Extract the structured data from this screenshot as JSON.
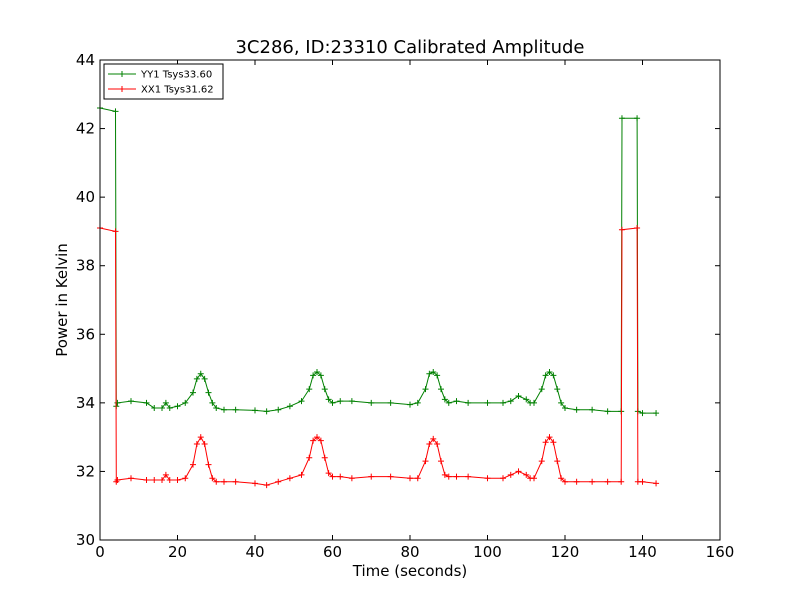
{
  "chart_data": {
    "type": "line",
    "title": "3C286, ID:23310 Calibrated Amplitude",
    "xlabel": "Time (seconds)",
    "ylabel": "Power in Kelvin",
    "xlim": [
      0,
      160
    ],
    "ylim": [
      30,
      44
    ],
    "xticks": [
      "0",
      "20",
      "40",
      "60",
      "80",
      "100",
      "120",
      "140",
      "160"
    ],
    "yticks": [
      "30",
      "32",
      "34",
      "36",
      "38",
      "40",
      "42",
      "44"
    ],
    "grid": false,
    "legend_position": "top-left",
    "series": [
      {
        "name": "YY1 Tsys33.60",
        "color": "#008000",
        "x": [
          0,
          4,
          4.2,
          4.5,
          8,
          12,
          14,
          16,
          17,
          18,
          20,
          22,
          24,
          25,
          26,
          27,
          28,
          29,
          30,
          32,
          35,
          40,
          43,
          46,
          49,
          52,
          54,
          55,
          56,
          57,
          58,
          59,
          60,
          62,
          65,
          70,
          75,
          80,
          82,
          84,
          85,
          86,
          87,
          88,
          89,
          90,
          92,
          95,
          100,
          104,
          106,
          108,
          110,
          111,
          112,
          114,
          115,
          116,
          117,
          118,
          119,
          120,
          123,
          127,
          131,
          134.5,
          134.7,
          138.6,
          138.8,
          140,
          143.5
        ],
        "y": [
          42.6,
          42.5,
          33.9,
          34.0,
          34.05,
          34.0,
          33.85,
          33.85,
          34.0,
          33.85,
          33.9,
          34.0,
          34.3,
          34.7,
          34.85,
          34.7,
          34.3,
          34.0,
          33.85,
          33.8,
          33.8,
          33.78,
          33.75,
          33.8,
          33.9,
          34.05,
          34.4,
          34.8,
          34.9,
          34.8,
          34.4,
          34.1,
          34.0,
          34.05,
          34.05,
          34.0,
          34.0,
          33.95,
          34.0,
          34.4,
          34.85,
          34.9,
          34.8,
          34.4,
          34.1,
          34.0,
          34.05,
          34.0,
          34.0,
          34.0,
          34.05,
          34.2,
          34.1,
          34.0,
          34.0,
          34.4,
          34.8,
          34.9,
          34.8,
          34.4,
          34.0,
          33.85,
          33.8,
          33.8,
          33.75,
          33.75,
          42.3,
          42.3,
          33.75,
          33.7,
          33.7
        ]
      },
      {
        "name": "XX1 Tsys31.62",
        "color": "#ff0000",
        "x": [
          0,
          4,
          4.2,
          4.5,
          8,
          12,
          14,
          16,
          17,
          18,
          20,
          22,
          24,
          25,
          26,
          27,
          28,
          29,
          30,
          32,
          35,
          40,
          43,
          46,
          49,
          52,
          54,
          55,
          56,
          57,
          58,
          59,
          60,
          62,
          65,
          70,
          75,
          80,
          82,
          84,
          85,
          86,
          87,
          88,
          89,
          90,
          92,
          95,
          100,
          104,
          106,
          108,
          110,
          111,
          112,
          114,
          115,
          116,
          117,
          118,
          119,
          120,
          123,
          127,
          131,
          134.5,
          134.7,
          138.6,
          138.8,
          140,
          143.5
        ],
        "y": [
          39.1,
          39.0,
          31.7,
          31.75,
          31.8,
          31.75,
          31.75,
          31.75,
          31.9,
          31.75,
          31.75,
          31.8,
          32.2,
          32.8,
          33.0,
          32.8,
          32.2,
          31.8,
          31.7,
          31.7,
          31.7,
          31.65,
          31.6,
          31.7,
          31.8,
          31.9,
          32.4,
          32.9,
          33.0,
          32.9,
          32.4,
          31.95,
          31.85,
          31.85,
          31.8,
          31.85,
          31.85,
          31.8,
          31.8,
          32.3,
          32.8,
          32.95,
          32.8,
          32.3,
          31.9,
          31.85,
          31.85,
          31.85,
          31.8,
          31.8,
          31.9,
          32.0,
          31.9,
          31.8,
          31.8,
          32.3,
          32.85,
          33.0,
          32.85,
          32.3,
          31.8,
          31.7,
          31.7,
          31.7,
          31.7,
          31.7,
          39.05,
          39.1,
          31.7,
          31.7,
          31.65
        ]
      }
    ]
  }
}
